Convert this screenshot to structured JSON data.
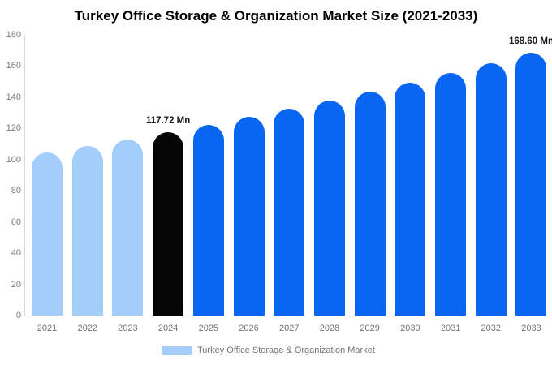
{
  "title": "Turkey Office Storage & Organization Market Size (2021-2033)",
  "chart_data": {
    "type": "bar",
    "title": "Turkey Office Storage & Organization Market Size (2021-2033)",
    "categories": [
      "2021",
      "2022",
      "2023",
      "2024",
      "2025",
      "2026",
      "2027",
      "2028",
      "2029",
      "2030",
      "2031",
      "2032",
      "2033"
    ],
    "values": [
      104.5,
      108.7,
      113.1,
      117.72,
      122.5,
      127.5,
      132.7,
      138.1,
      143.7,
      149.5,
      155.6,
      161.9,
      168.6
    ],
    "unit": "Mn",
    "xlabel": "",
    "ylabel": "",
    "ylim": [
      0,
      180
    ],
    "yticks": [
      0,
      20,
      40,
      60,
      80,
      100,
      120,
      140,
      160,
      180
    ],
    "grid": false,
    "legend_position": "bottom",
    "color_groups": [
      "past",
      "past",
      "past",
      "current",
      "forecast",
      "forecast",
      "forecast",
      "forecast",
      "forecast",
      "forecast",
      "forecast",
      "forecast",
      "forecast"
    ],
    "colors": {
      "past": "#a3cdfb",
      "current": "#050505",
      "forecast": "#0866f2"
    },
    "annotations": [
      {
        "category": "2024",
        "label": "117.72 Mn"
      },
      {
        "category": "2033",
        "label": "168.60 Mn"
      }
    ]
  },
  "legend": {
    "label": "Turkey Office Storage & Organization Market",
    "swatch_color": "#a3cdfb"
  }
}
